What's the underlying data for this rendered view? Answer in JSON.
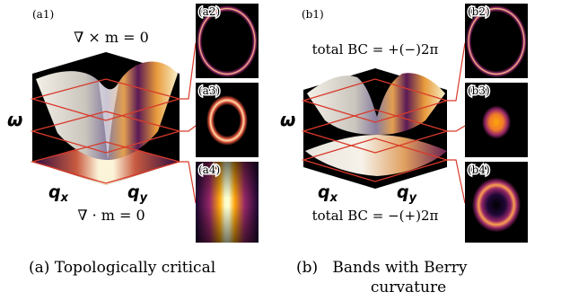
{
  "panel_a": {
    "label": "(a1)",
    "curl_eq": "∇ × m = 0",
    "div_eq": "∇ · m = 0",
    "axis_omega": "ω",
    "axis_qx": "q",
    "axis_qx_sub": "x",
    "axis_qy": "q",
    "axis_qy_sub": "y",
    "insets": [
      "(a2)",
      "(a3)",
      "(a4)"
    ],
    "caption": "(a) Topologically critical"
  },
  "panel_b": {
    "label": "(b1)",
    "bc_top": "total BC = +(−)2π",
    "bc_bottom": "total BC = −(+)2π",
    "axis_omega": "ω",
    "axis_qx": "q",
    "axis_qx_sub": "x",
    "axis_qy": "q",
    "axis_qy_sub": "y",
    "insets": [
      "(b2)",
      "(b3)",
      "(b4)"
    ],
    "caption_line1": "(b)   Bands with Berry",
    "caption_line2": "curvature"
  },
  "colors": {
    "plane_outline": "#d83a2a",
    "inset_background": "#000000",
    "colormap": [
      "#000004",
      "#420a68",
      "#932667",
      "#dd513a",
      "#fca50a",
      "#fcffa4"
    ]
  }
}
